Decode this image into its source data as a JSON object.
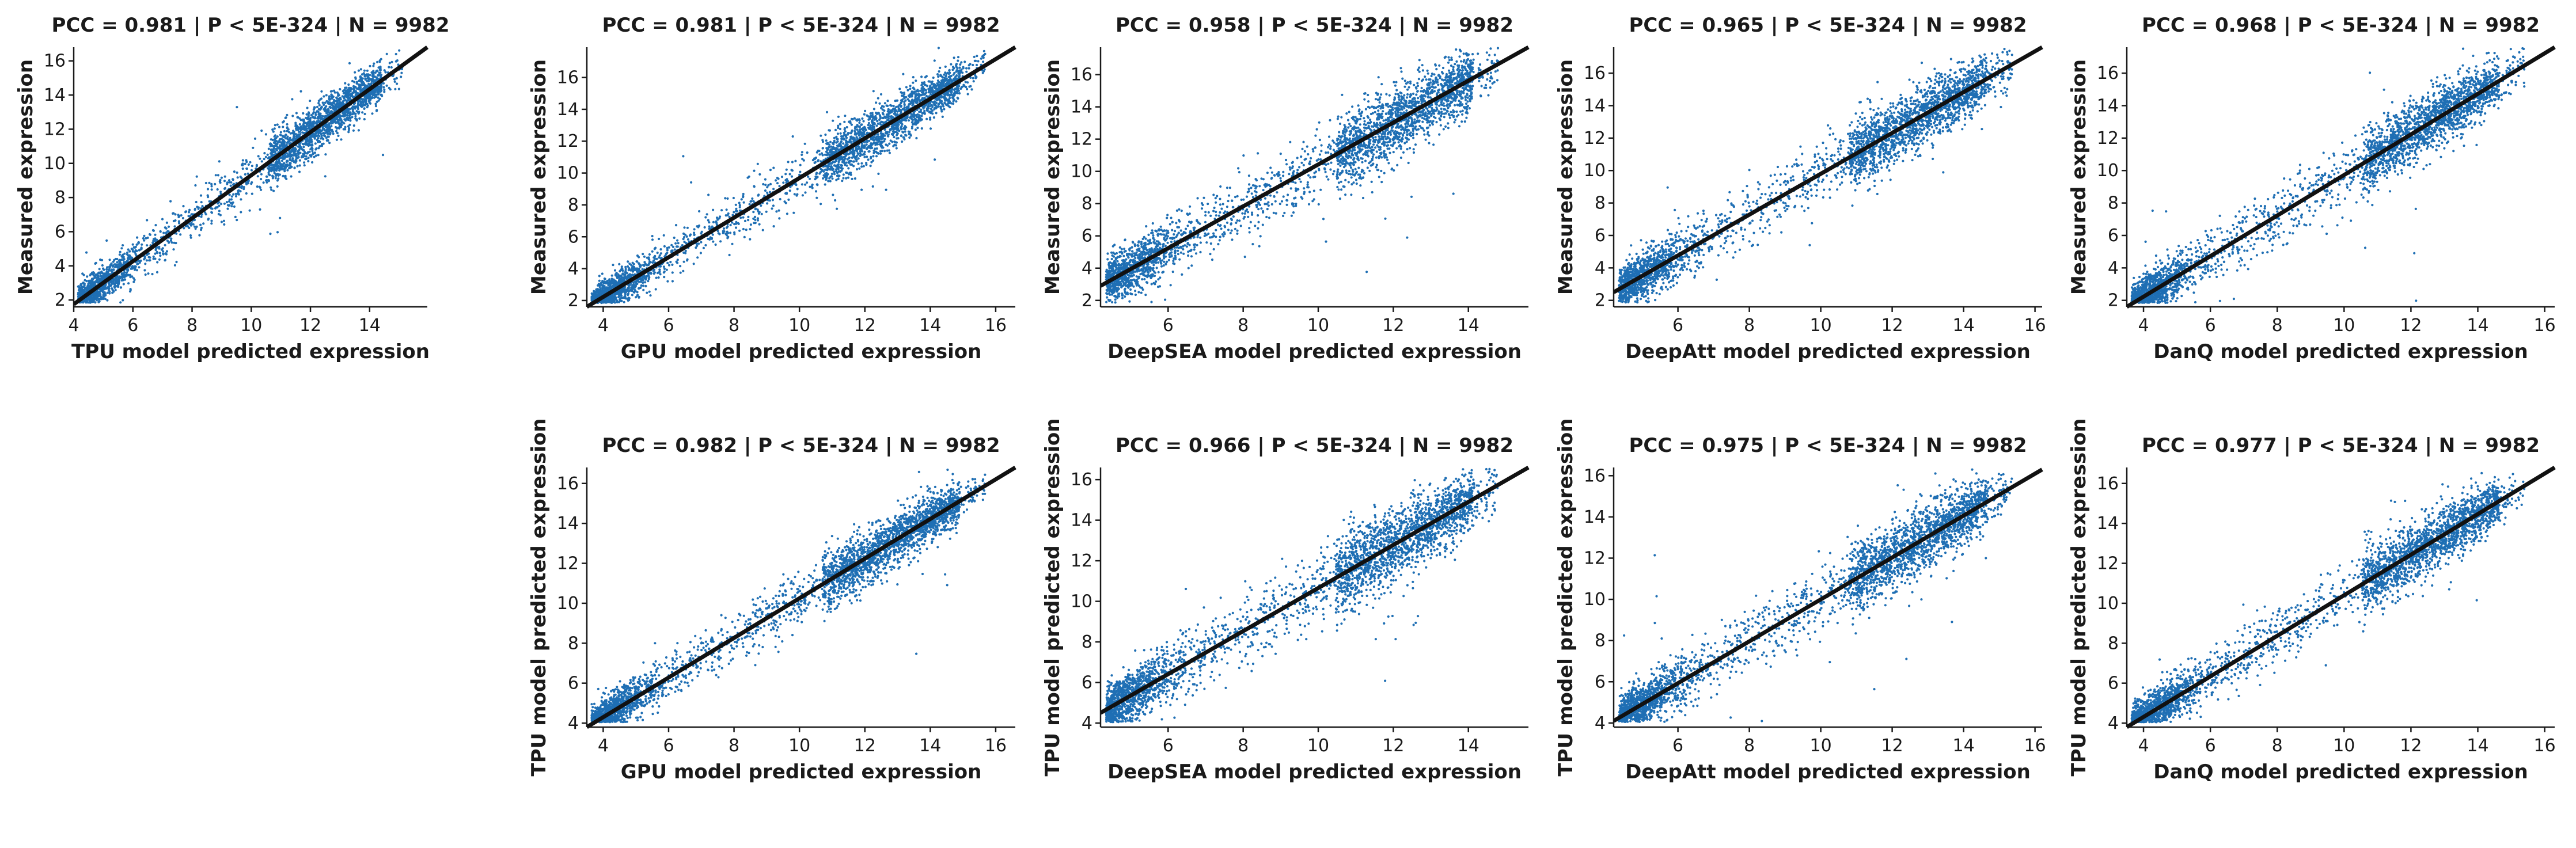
{
  "figure": {
    "point_color": "#1f6fb4",
    "line_color": "#111111"
  },
  "chart_data": [
    {
      "type": "scatter",
      "title": "PCC =  0.981 | P <  5E-324 | N = 9982",
      "xlabel": "TPU model predicted expression",
      "ylabel": "Measured expression",
      "xlim": [
        4.0,
        15.95
      ],
      "ylim": [
        1.6,
        16.8
      ],
      "xticks": [
        4,
        6,
        8,
        10,
        12,
        14
      ],
      "yticks": [
        2,
        4,
        6,
        8,
        10,
        12,
        14,
        16
      ],
      "point_cloud": {
        "n_drawn": 3200,
        "fit": [
          [
            4.0,
            1.75
          ],
          [
            15.95,
            16.8
          ]
        ],
        "spread": 0.75
      }
    },
    {
      "type": "scatter",
      "title": "PCC =  0.981 | P <  5E-324 | N = 9982",
      "xlabel": "GPU model predicted expression",
      "ylabel": "Measured expression",
      "xlim": [
        3.5,
        16.6
      ],
      "ylim": [
        1.6,
        17.9
      ],
      "xticks": [
        4,
        6,
        8,
        10,
        12,
        14,
        16
      ],
      "yticks": [
        2,
        4,
        6,
        8,
        10,
        12,
        14,
        16
      ],
      "point_cloud": {
        "n_drawn": 3200,
        "fit": [
          [
            3.5,
            1.6
          ],
          [
            16.6,
            17.9
          ]
        ],
        "spread": 0.8
      }
    },
    {
      "type": "scatter",
      "title": "PCC =  0.958 | P <  5E-324 | N = 9982",
      "xlabel": "DeepSEA model predicted expression",
      "ylabel": "Measured expression",
      "xlim": [
        4.2,
        15.6
      ],
      "ylim": [
        1.6,
        17.7
      ],
      "xticks": [
        6,
        8,
        10,
        12,
        14
      ],
      "yticks": [
        2,
        4,
        6,
        8,
        10,
        12,
        14,
        16
      ],
      "point_cloud": {
        "n_drawn": 3200,
        "fit": [
          [
            4.2,
            2.9
          ],
          [
            15.6,
            17.7
          ]
        ],
        "spread": 1.15
      }
    },
    {
      "type": "scatter",
      "title": "PCC =  0.965 | P <  5E-324 | N = 9982",
      "xlabel": "DeepAtt model predicted expression",
      "ylabel": "Measured expression",
      "xlim": [
        4.2,
        16.2
      ],
      "ylim": [
        1.6,
        17.6
      ],
      "xticks": [
        6,
        8,
        10,
        12,
        14,
        16
      ],
      "yticks": [
        2,
        4,
        6,
        8,
        10,
        12,
        14,
        16
      ],
      "point_cloud": {
        "n_drawn": 3200,
        "fit": [
          [
            4.2,
            2.5
          ],
          [
            16.2,
            17.6
          ]
        ],
        "spread": 1.05
      }
    },
    {
      "type": "scatter",
      "title": "PCC =  0.968 | P <  5E-324 | N = 9982",
      "xlabel": "DanQ model predicted expression",
      "ylabel": "Measured expression",
      "xlim": [
        3.5,
        16.3
      ],
      "ylim": [
        1.6,
        17.6
      ],
      "xticks": [
        4,
        6,
        8,
        10,
        12,
        14,
        16
      ],
      "yticks": [
        2,
        4,
        6,
        8,
        10,
        12,
        14,
        16
      ],
      "point_cloud": {
        "n_drawn": 3200,
        "fit": [
          [
            3.5,
            1.6
          ],
          [
            16.3,
            17.6
          ]
        ],
        "spread": 1.0
      }
    },
    {
      "type": "scatter",
      "title": "PCC =  0.982 | P <  5E-324 | N = 9982",
      "xlabel": "GPU model predicted expression",
      "ylabel": "TPU model predicted expression",
      "xlim": [
        3.5,
        16.6
      ],
      "ylim": [
        3.8,
        16.8
      ],
      "xticks": [
        4,
        6,
        8,
        10,
        12,
        14,
        16
      ],
      "yticks": [
        4,
        6,
        8,
        10,
        12,
        14,
        16
      ],
      "point_cloud": {
        "n_drawn": 3200,
        "fit": [
          [
            3.5,
            3.8
          ],
          [
            16.6,
            16.8
          ]
        ],
        "spread": 0.7
      }
    },
    {
      "type": "scatter",
      "title": "PCC =  0.966 | P <  5E-324 | N = 9982",
      "xlabel": "DeepSEA model predicted expression",
      "ylabel": "TPU model predicted expression",
      "xlim": [
        4.2,
        15.6
      ],
      "ylim": [
        3.8,
        16.6
      ],
      "xticks": [
        6,
        8,
        10,
        12,
        14
      ],
      "yticks": [
        4,
        6,
        8,
        10,
        12,
        14,
        16
      ],
      "point_cloud": {
        "n_drawn": 3200,
        "fit": [
          [
            4.2,
            4.5
          ],
          [
            15.6,
            16.6
          ]
        ],
        "spread": 0.95
      }
    },
    {
      "type": "scatter",
      "title": "PCC =  0.975 | P <  5E-324 | N = 9982",
      "xlabel": "DeepAtt model predicted expression",
      "ylabel": "TPU model predicted expression",
      "xlim": [
        4.2,
        16.2
      ],
      "ylim": [
        3.8,
        16.4
      ],
      "xticks": [
        6,
        8,
        10,
        12,
        14,
        16
      ],
      "yticks": [
        4,
        6,
        8,
        10,
        12,
        14,
        16
      ],
      "point_cloud": {
        "n_drawn": 3200,
        "fit": [
          [
            4.2,
            4.1
          ],
          [
            16.2,
            16.3
          ]
        ],
        "spread": 0.85
      }
    },
    {
      "type": "scatter",
      "title": "PCC =  0.977 | P <  5E-324 | N = 9982",
      "xlabel": "DanQ model predicted expression",
      "ylabel": "TPU model predicted expression",
      "xlim": [
        3.5,
        16.3
      ],
      "ylim": [
        3.8,
        16.8
      ],
      "xticks": [
        4,
        6,
        8,
        10,
        12,
        14,
        16
      ],
      "yticks": [
        4,
        6,
        8,
        10,
        12,
        14,
        16
      ],
      "point_cloud": {
        "n_drawn": 3200,
        "fit": [
          [
            3.5,
            3.8
          ],
          [
            16.3,
            16.8
          ]
        ],
        "spread": 0.8
      }
    }
  ]
}
